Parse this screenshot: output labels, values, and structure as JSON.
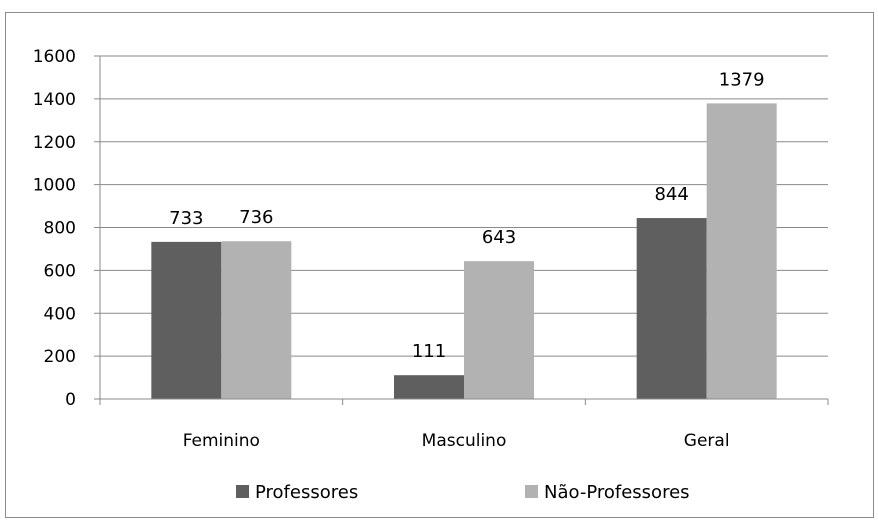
{
  "chart_data": {
    "type": "bar",
    "categories": [
      "Feminino",
      "Masculino",
      "Geral"
    ],
    "series": [
      {
        "name": "Professores",
        "values": [
          733,
          111,
          844
        ],
        "color": "#5f5f5f"
      },
      {
        "name": "Não-Professores",
        "values": [
          736,
          643,
          1379
        ],
        "color": "#b2b2b2"
      }
    ],
    "ylim": [
      0,
      1600
    ],
    "yticks": [
      0,
      200,
      400,
      600,
      800,
      1000,
      1200,
      1400,
      1600
    ],
    "grid": true,
    "legend_position": "bottom",
    "data_labels": true
  }
}
